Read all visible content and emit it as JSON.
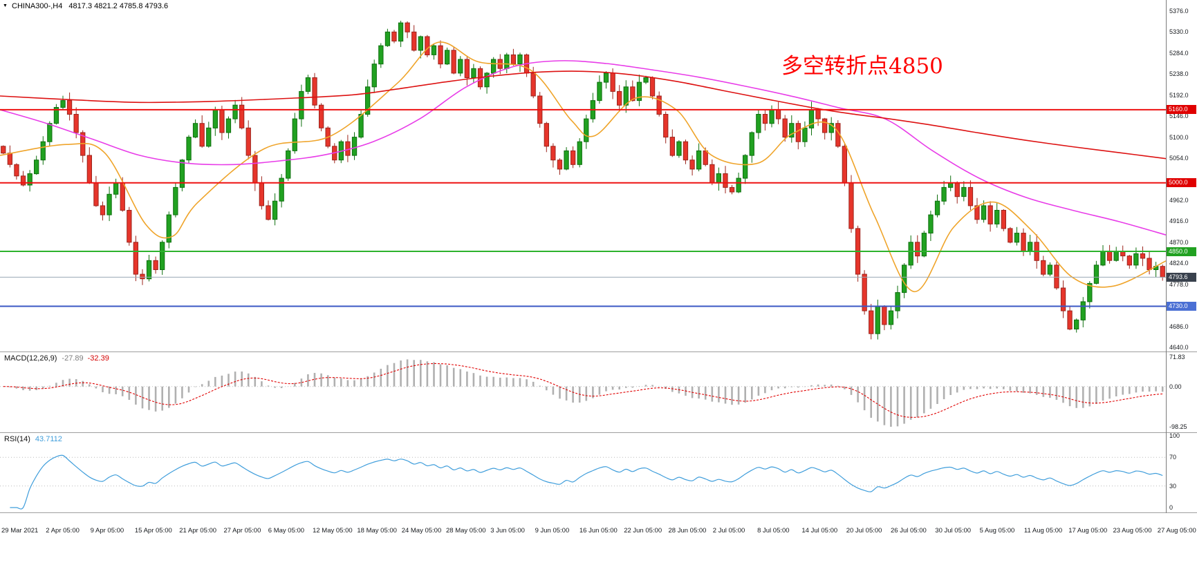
{
  "window": {
    "marker_icon": "▼",
    "symbol_period": "CHINA300-,H4",
    "ohlc_line": "4817.3 4821.2 4785.8 4793.6"
  },
  "annotation": {
    "text": "多空转折点4850",
    "color": "#fe0000"
  },
  "chart_data": {
    "type": "candlestick",
    "symbol": "CHINA300-,H4",
    "timeframe": "H4",
    "current_ohlc": {
      "open": 4817.3,
      "high": 4821.2,
      "low": 4785.8,
      "close": 4793.6
    },
    "x_axis_labels": [
      "29 Mar 2021",
      "2 Apr 05:00",
      "9 Apr 05:00",
      "15 Apr 05:00",
      "21 Apr 05:00",
      "27 Apr 05:00",
      "6 May 05:00",
      "12 May 05:00",
      "18 May 05:00",
      "24 May 05:00",
      "28 May 05:00",
      "3 Jun 05:00",
      "9 Jun 05:00",
      "16 Jun 05:00",
      "22 Jun 05:00",
      "28 Jun 05:00",
      "2 Jul 05:00",
      "8 Jul 05:00",
      "14 Jul 05:00",
      "20 Jul 05:00",
      "26 Jul 05:00",
      "30 Jul 05:00",
      "5 Aug 05:00",
      "11 Aug 05:00",
      "17 Aug 05:00",
      "23 Aug 05:00",
      "27 Aug 05:00"
    ],
    "y_axis": {
      "price_top": 5400,
      "price_bottom": 4631,
      "ticks": [
        "5376.0",
        "5330.0",
        "5284.0",
        "5238.0",
        "5192.0",
        "5146.0",
        "5100.0",
        "5054.0",
        "4962.0",
        "4916.0",
        "4870.0",
        "4824.0",
        "4778.0",
        "4686.0",
        "4640.0"
      ]
    },
    "levels": [
      {
        "price": 5160.0,
        "label": "5160.0",
        "color": "#ee1111",
        "badge_color": "#e00000",
        "width": 2
      },
      {
        "price": 5000.0,
        "label": "5000.0",
        "color": "#ee1111",
        "badge_color": "#e00000",
        "width": 2
      },
      {
        "price": 4850.0,
        "label": "4850.0",
        "color": "#2db32d",
        "badge_color": "#21a121",
        "width": 2
      },
      {
        "price": 4793.6,
        "label": "4793.6",
        "color": "#9aa8b5",
        "badge_color": "#39414d",
        "width": 1
      },
      {
        "price": 4730.0,
        "label": "4730.0",
        "color": "#3a57c4",
        "badge_color": "#4a6fd4",
        "width": 2
      }
    ],
    "candles": {
      "first_open": 5080,
      "wick_max": 16,
      "up_color": "#21a121",
      "up_border": "#0e6f0e",
      "down_color": "#e6352b",
      "down_border": "#9c241c",
      "closes": [
        5065,
        5040,
        5015,
        4995,
        5020,
        5050,
        5090,
        5130,
        5165,
        5180,
        5150,
        5110,
        5060,
        5000,
        4950,
        4930,
        4975,
        5000,
        4940,
        4870,
        4800,
        4790,
        4830,
        4810,
        4870,
        4930,
        4990,
        5050,
        5100,
        5130,
        5080,
        5120,
        5160,
        5110,
        5140,
        5170,
        5120,
        5060,
        5000,
        4950,
        4920,
        4960,
        5010,
        5070,
        5140,
        5200,
        5230,
        5170,
        5120,
        5080,
        5050,
        5090,
        5060,
        5100,
        5150,
        5210,
        5260,
        5300,
        5330,
        5310,
        5350,
        5330,
        5290,
        5320,
        5280,
        5300,
        5260,
        5290,
        5240,
        5270,
        5230,
        5250,
        5210,
        5240,
        5270,
        5250,
        5280,
        5260,
        5280,
        5240,
        5190,
        5130,
        5080,
        5050,
        5030,
        5070,
        5040,
        5090,
        5140,
        5180,
        5220,
        5240,
        5200,
        5170,
        5210,
        5180,
        5220,
        5230,
        5190,
        5150,
        5100,
        5060,
        5090,
        5050,
        5030,
        5070,
        5040,
        5000,
        5020,
        4990,
        4980,
        5010,
        5060,
        5110,
        5150,
        5130,
        5160,
        5140,
        5100,
        5130,
        5090,
        5120,
        5160,
        5140,
        5110,
        5130,
        5080,
        5000,
        4900,
        4800,
        4720,
        4670,
        4730,
        4690,
        4720,
        4760,
        4820,
        4870,
        4840,
        4890,
        4930,
        4960,
        4990,
        5000,
        4970,
        4990,
        4950,
        4920,
        4950,
        4910,
        4940,
        4900,
        4870,
        4890,
        4850,
        4870,
        4830,
        4800,
        4820,
        4770,
        4720,
        4680,
        4700,
        4740,
        4780,
        4820,
        4850,
        4830,
        4850,
        4840,
        4820,
        4845,
        4835,
        4810,
        4817.3,
        4793.6
      ]
    },
    "ma_lines": [
      {
        "name": "fast-ma-orange",
        "color": "#efa42a",
        "points": [
          [
            0,
            5060
          ],
          [
            0.057,
            5084
          ],
          [
            0.09,
            5065
          ],
          [
            0.125,
            4909
          ],
          [
            0.148,
            4883
          ],
          [
            0.17,
            4958
          ],
          [
            0.227,
            5075
          ],
          [
            0.284,
            5103
          ],
          [
            0.34,
            5216
          ],
          [
            0.375,
            5307
          ],
          [
            0.41,
            5265
          ],
          [
            0.455,
            5247
          ],
          [
            0.49,
            5137
          ],
          [
            0.51,
            5103
          ],
          [
            0.545,
            5185
          ],
          [
            0.58,
            5160
          ],
          [
            0.61,
            5061
          ],
          [
            0.65,
            5043
          ],
          [
            0.68,
            5108
          ],
          [
            0.716,
            5120
          ],
          [
            0.75,
            4928
          ],
          [
            0.784,
            4762
          ],
          [
            0.818,
            4903
          ],
          [
            0.852,
            4958
          ],
          [
            0.886,
            4893
          ],
          [
            0.92,
            4793
          ],
          [
            0.955,
            4774
          ],
          [
            1,
            4829
          ]
        ]
      },
      {
        "name": "mid-ma-magenta",
        "color": "#e83ce8",
        "points": [
          [
            0,
            5160
          ],
          [
            0.04,
            5130
          ],
          [
            0.08,
            5095
          ],
          [
            0.12,
            5060
          ],
          [
            0.16,
            5043
          ],
          [
            0.2,
            5040
          ],
          [
            0.24,
            5048
          ],
          [
            0.28,
            5062
          ],
          [
            0.32,
            5090
          ],
          [
            0.36,
            5140
          ],
          [
            0.4,
            5210
          ],
          [
            0.44,
            5254
          ],
          [
            0.48,
            5267
          ],
          [
            0.52,
            5261
          ],
          [
            0.56,
            5247
          ],
          [
            0.6,
            5231
          ],
          [
            0.64,
            5211
          ],
          [
            0.68,
            5189
          ],
          [
            0.72,
            5164
          ],
          [
            0.76,
            5139
          ],
          [
            0.8,
            5070
          ],
          [
            0.84,
            5010
          ],
          [
            0.88,
            4968
          ],
          [
            0.92,
            4940
          ],
          [
            0.96,
            4915
          ],
          [
            1,
            4886
          ]
        ]
      },
      {
        "name": "slow-ma-red",
        "color": "#dd1111",
        "points": [
          [
            0,
            5190
          ],
          [
            0.06,
            5182
          ],
          [
            0.12,
            5176
          ],
          [
            0.18,
            5178
          ],
          [
            0.24,
            5184
          ],
          [
            0.3,
            5192
          ],
          [
            0.34,
            5205
          ],
          [
            0.38,
            5220
          ],
          [
            0.42,
            5233
          ],
          [
            0.46,
            5242
          ],
          [
            0.5,
            5244
          ],
          [
            0.54,
            5237
          ],
          [
            0.58,
            5222
          ],
          [
            0.62,
            5202
          ],
          [
            0.66,
            5182
          ],
          [
            0.7,
            5163
          ],
          [
            0.73,
            5151
          ],
          [
            0.76,
            5141
          ],
          [
            0.8,
            5126
          ],
          [
            0.84,
            5109
          ],
          [
            0.88,
            5093
          ],
          [
            0.92,
            5079
          ],
          [
            0.96,
            5066
          ],
          [
            1,
            5053
          ]
        ]
      }
    ],
    "macd": {
      "label": "MACD(12,26,9)",
      "value_main": "-27.89",
      "value_signal": "-32.39",
      "fast": 12,
      "slow": 26,
      "signal": 9,
      "hist_color": "#b0b0b0",
      "signal_color": "#e00000",
      "axis": {
        "top_value": 83.6,
        "bottom_value": -111.7,
        "ticks": [
          {
            "value": 71.83,
            "label": "71.83"
          },
          {
            "value": 0,
            "label": "0.00"
          },
          {
            "value": -98.25,
            "label": "-98.25"
          }
        ]
      }
    },
    "rsi": {
      "label": "RSI(14)",
      "value": "43.7112",
      "period": 14,
      "line_color": "#3e9ddb",
      "level_lines": [
        70,
        30
      ],
      "axis": {
        "ticks": [
          {
            "value": 100,
            "label": "100"
          },
          {
            "value": 70,
            "label": "70"
          },
          {
            "value": 30,
            "label": "30"
          },
          {
            "value": 0,
            "label": "0"
          }
        ]
      }
    }
  }
}
